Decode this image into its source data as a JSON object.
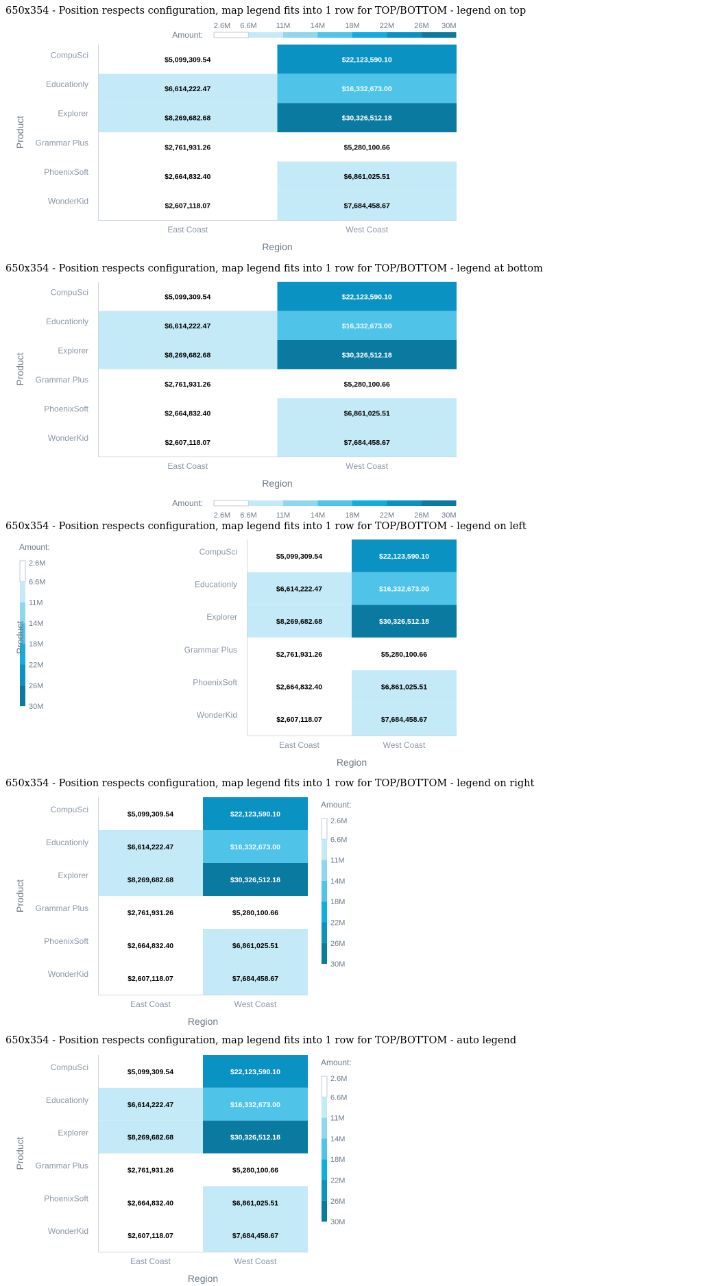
{
  "titles": {
    "top": "650x354 - Position respects configuration, map legend fits into 1 row for TOP/BOTTOM - legend on top",
    "bottom": "650x354 - Position respects configuration, map legend fits into 1 row for TOP/BOTTOM - legend at bottom",
    "left": "650x354 - Position respects configuration, map legend fits into 1 row for TOP/BOTTOM - legend on left",
    "right": "650x354 - Position respects configuration, map legend fits into 1 row for TOP/BOTTOM - legend on right",
    "auto": "650x354 - Position respects configuration, map legend fits into 1 row for TOP/BOTTOM - auto legend"
  },
  "chart_data": {
    "type": "heatmap",
    "xlabel": "Region",
    "ylabel": "Product",
    "x_categories": [
      "East Coast",
      "West Coast"
    ],
    "y_categories": [
      "CompuSci",
      "Educationly",
      "Explorer",
      "Grammar Plus",
      "PhoenixSoft",
      "WonderKid"
    ],
    "values": [
      [
        5099309.54,
        22123590.1
      ],
      [
        6614222.47,
        16332673.0
      ],
      [
        8269682.68,
        30326512.18
      ],
      [
        2761931.26,
        5280100.66
      ],
      [
        2664832.4,
        6861025.51
      ],
      [
        2607118.07,
        7684458.67
      ]
    ],
    "labels": [
      [
        "$5,099,309.54",
        "$22,123,590.10"
      ],
      [
        "$6,614,222.47",
        "$16,332,673.00"
      ],
      [
        "$8,269,682.68",
        "$30,326,512.18"
      ],
      [
        "$2,761,931.26",
        "$5,280,100.66"
      ],
      [
        "$2,664,832.40",
        "$6,861,025.51"
      ],
      [
        "$2,607,118.07",
        "$7,684,458.67"
      ]
    ],
    "legend": {
      "title": "Amount:",
      "ticks": [
        "2.6M",
        "6.6M",
        "11M",
        "14M",
        "18M",
        "22M",
        "26M",
        "30M"
      ],
      "colors": [
        "#ffffff",
        "#c5eaf7",
        "#8fd6ef",
        "#4fc3e8",
        "#11ade0",
        "#0a93c2",
        "#0b7aa0",
        "#056c8e"
      ]
    },
    "legend_positions": [
      "top",
      "bottom",
      "left",
      "right",
      "auto"
    ]
  }
}
